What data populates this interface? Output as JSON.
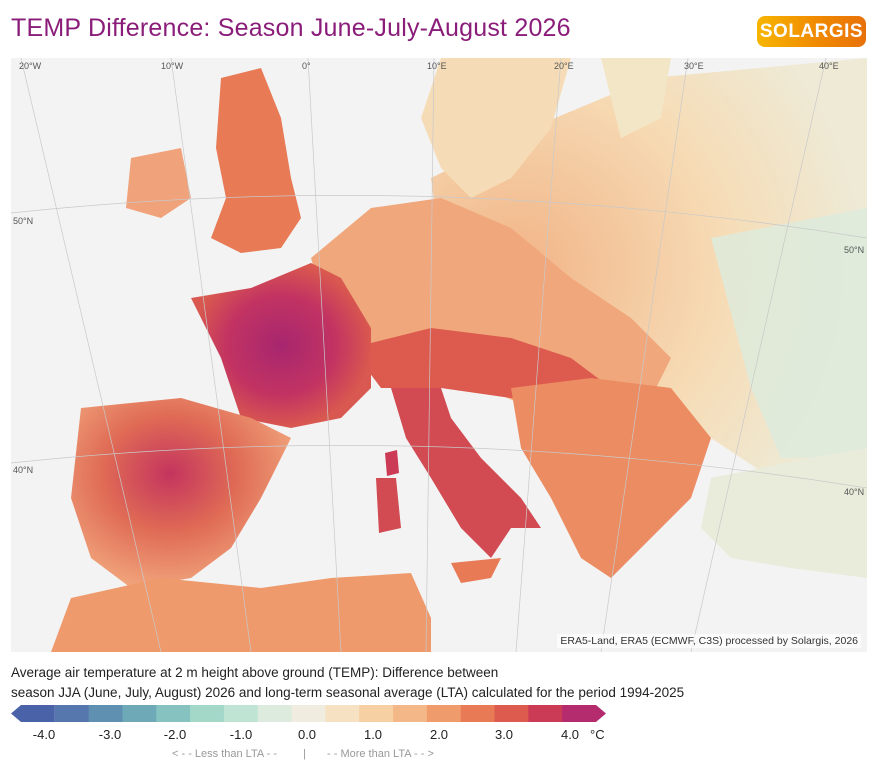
{
  "header": {
    "title": "TEMP Difference: Season June-July-August 2026",
    "logo_text": "SOLARGIS",
    "logo_color": "#f08a00"
  },
  "map": {
    "longitude_labels": [
      "20°W",
      "10°W",
      "0°",
      "10°E",
      "20°E",
      "30°E",
      "40°E"
    ],
    "latitude_labels_left": [
      "50°N",
      "40°N"
    ],
    "latitude_labels_right": [
      "50°N",
      "40°N"
    ],
    "credit": "ERA5-Land, ERA5 (ECMWF, C3S) processed by Solargis, 2026"
  },
  "description": {
    "line1": "Average air temperature at 2 m height above ground (TEMP): Difference between",
    "line2": "season JJA (June, July, August) 2026 and long-term seasonal average (LTA) calculated for the period 1994-2025"
  },
  "legend": {
    "tick_labels": [
      "-4.0",
      "-3.0",
      "-2.0",
      "-1.0",
      "0.0",
      "1.0",
      "2.0",
      "3.0",
      "4.0"
    ],
    "unit": "°C",
    "less_label": "< - -  Less than LTA  - -",
    "separator": "|",
    "more_label": "- -  More than LTA  - - >",
    "colors": [
      "#4a62a8",
      "#5577ad",
      "#5f8fb1",
      "#6ea9b8",
      "#86c3c0",
      "#a3d8c9",
      "#c0e4d3",
      "#dcebdd",
      "#f0ece0",
      "#f6e2c2",
      "#f6cfa2",
      "#f4b888",
      "#f09b6c",
      "#e87a56",
      "#dd5a4e",
      "#cc3b55",
      "#b42b6e"
    ]
  }
}
